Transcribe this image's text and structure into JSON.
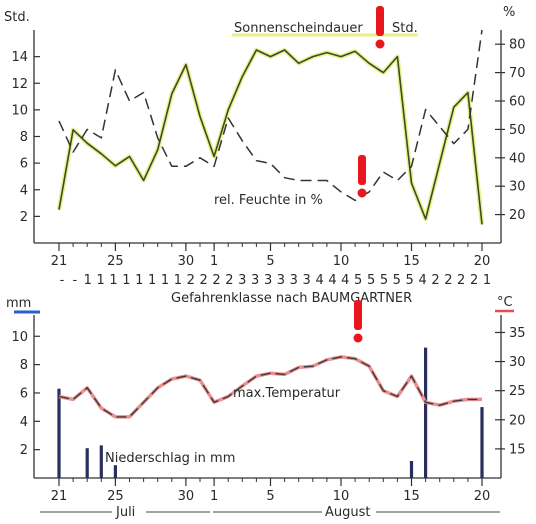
{
  "chart_data": [
    {
      "type": "line",
      "title": "",
      "left_axis_unit": "Std.",
      "right_axis_unit": "%",
      "x_tick_labels": [
        "21",
        "25",
        "30",
        "1",
        "5",
        "10",
        "15",
        "20"
      ],
      "x_tick_days": [
        21,
        25,
        30,
        32,
        36,
        41,
        46,
        51
      ],
      "left_ticks": [
        "2",
        "4",
        "6",
        "8",
        "10",
        "12",
        "14"
      ],
      "right_ticks": [
        "20",
        "30",
        "40",
        "50",
        "60",
        "70",
        "80"
      ],
      "y_left_lim": [
        0,
        16
      ],
      "y_right_lim": [
        10,
        85
      ],
      "series": [
        {
          "name": "Sonnenscheindauer",
          "unit": "Std.",
          "axis": "left",
          "style": "solid",
          "color": "#3d4a2a",
          "x": [
            21,
            22,
            23,
            24,
            25,
            26,
            27,
            28,
            29,
            30,
            31,
            32,
            33,
            34,
            35,
            36,
            37,
            38,
            39,
            40,
            41,
            42,
            43,
            44,
            45,
            46,
            47,
            48,
            49,
            50,
            51
          ],
          "values": [
            2.5,
            8.5,
            7.5,
            6.7,
            5.8,
            6.5,
            4.7,
            7.0,
            11.2,
            13.4,
            9.5,
            6.5,
            10.0,
            12.5,
            14.5,
            14.0,
            14.5,
            13.5,
            14.0,
            14.3,
            14.0,
            14.4,
            13.5,
            12.8,
            14.0,
            4.5,
            1.8,
            6.0,
            10.2,
            11.3,
            1.4
          ]
        },
        {
          "name": "rel. Feuchte",
          "unit": "%",
          "axis": "right",
          "style": "dashed",
          "color": "#333333",
          "x": [
            21,
            22,
            23,
            24,
            25,
            26,
            27,
            28,
            29,
            30,
            31,
            32,
            33,
            34,
            35,
            36,
            37,
            38,
            39,
            40,
            41,
            42,
            43,
            44,
            45,
            46,
            47,
            48,
            49,
            50,
            51
          ],
          "values": [
            53,
            42,
            50,
            47,
            71,
            60,
            63,
            47,
            37,
            37,
            40,
            37,
            54,
            46,
            39,
            38,
            33,
            32,
            32,
            32,
            28,
            25,
            28,
            35,
            32,
            37,
            57,
            51,
            45,
            50,
            85
          ]
        }
      ],
      "annotations": [
        "Sonnenscheindauer",
        "Std.",
        "rel. Feuchte in %"
      ],
      "danger_classes_label": "Gefahrenklasse nach BAUMGARTNER",
      "danger_classes": [
        "-",
        "-",
        "1",
        "1",
        "1",
        "1",
        "1",
        "1",
        "1",
        "1",
        "2",
        "2",
        "2",
        "2",
        "3",
        "3",
        "3",
        "3",
        "3",
        "3",
        "4",
        "4",
        "4",
        "5",
        "5",
        "5",
        "5",
        "5",
        "4",
        "2",
        "2",
        "2",
        "2",
        "1"
      ]
    },
    {
      "type": "bar+line",
      "title": "",
      "left_axis_unit": "mm",
      "right_axis_unit": "°C",
      "x_tick_labels": [
        "21",
        "25",
        "30",
        "1",
        "5",
        "10",
        "15",
        "20"
      ],
      "x_tick_days": [
        21,
        25,
        30,
        32,
        36,
        41,
        46,
        51
      ],
      "left_ticks": [
        "2",
        "4",
        "6",
        "8",
        "10"
      ],
      "right_ticks": [
        "15",
        "20",
        "25",
        "30",
        "35"
      ],
      "y_left_lim": [
        0,
        11.5
      ],
      "y_right_lim": [
        10,
        38
      ],
      "month_labels": [
        "Juli",
        "August"
      ],
      "series": [
        {
          "name": "max. Temperatur",
          "unit": "°C",
          "axis": "right",
          "style": "dashed",
          "color": "#444444",
          "highlight_color": "#e07070",
          "x": [
            21,
            22,
            23,
            24,
            25,
            26,
            27,
            28,
            29,
            30,
            31,
            32,
            33,
            34,
            35,
            36,
            37,
            38,
            39,
            40,
            41,
            42,
            43,
            44,
            45,
            46,
            47,
            48,
            49,
            50,
            51
          ],
          "values": [
            24,
            23.5,
            25.5,
            22,
            20.5,
            20.5,
            23,
            25.5,
            27,
            27.5,
            26.8,
            23,
            24,
            25.8,
            27.5,
            28,
            27.8,
            29,
            29.2,
            30.3,
            30.8,
            30.5,
            29.2,
            25,
            24,
            27.5,
            23,
            22.5,
            23.2,
            23.5,
            23.5
          ]
        },
        {
          "name": "Niederschlag",
          "unit": "mm",
          "axis": "left",
          "type": "bar",
          "color": "#2a2e5c",
          "x": [
            21,
            23,
            24,
            25,
            46,
            47,
            51
          ],
          "values": [
            6.3,
            2.1,
            2.3,
            0.9,
            1.2,
            9.2,
            5.0
          ]
        }
      ],
      "annotations": [
        "max.Temperatur",
        "Niederschlag in mm"
      ]
    }
  ]
}
